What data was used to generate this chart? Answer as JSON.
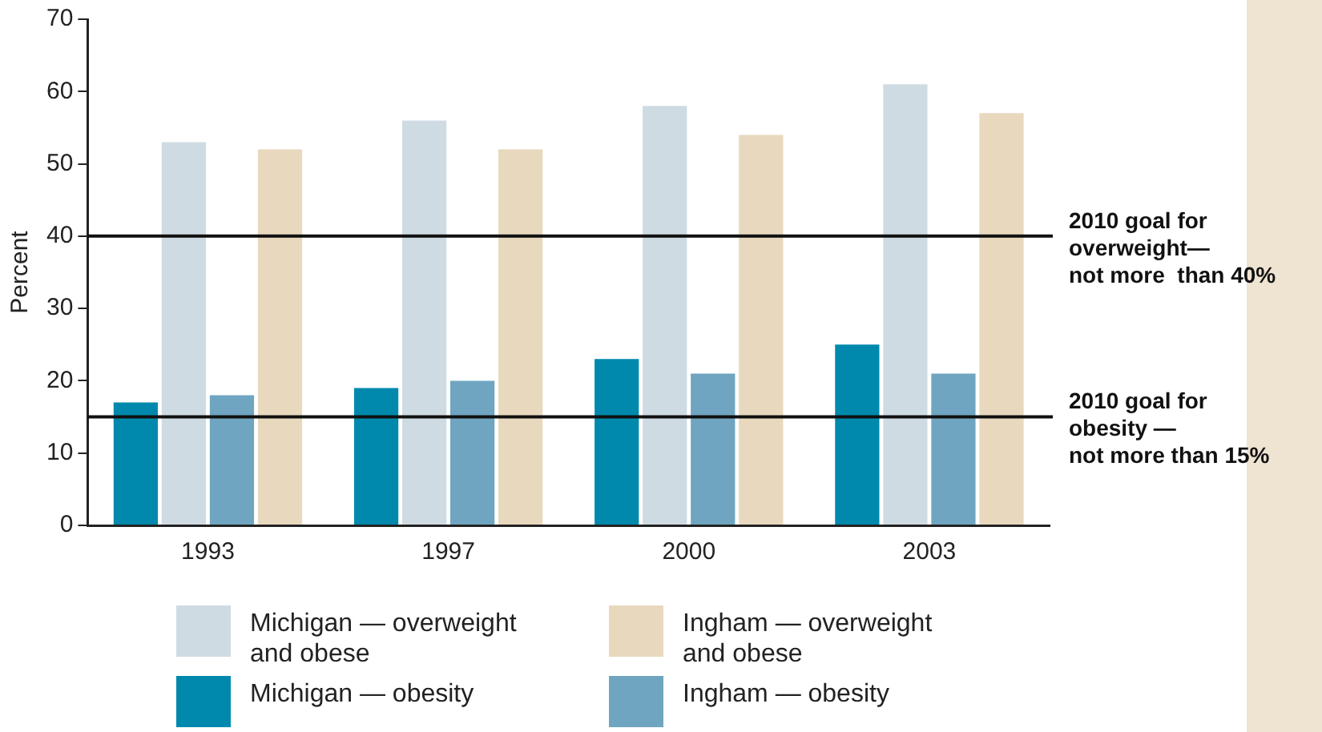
{
  "chart_data": {
    "type": "bar",
    "ylabel": "Percent",
    "categories": [
      "1993",
      "1997",
      "2000",
      "2003"
    ],
    "series": [
      {
        "name": "Michigan — obesity",
        "color": "#0089ad",
        "values": [
          17,
          19,
          23,
          25
        ]
      },
      {
        "name": "Michigan — overweight\nand obese",
        "color": "#cfdbe3",
        "values": [
          53,
          56,
          58,
          61
        ]
      },
      {
        "name": "Ingham — obesity",
        "color": "#6fa5c0",
        "values": [
          18,
          20,
          21,
          21
        ]
      },
      {
        "name": "Ingham — overweight\nand obese",
        "color": "#e8d8bd",
        "values": [
          52,
          52,
          54,
          57
        ]
      }
    ],
    "ylim": [
      0,
      70
    ],
    "yticks": [
      0,
      10,
      20,
      30,
      40,
      50,
      60,
      70
    ],
    "grid": false,
    "legend": "bottom",
    "ref_lines": [
      {
        "axis": "y",
        "value": 40,
        "label": "2010 goal for\noverweight—\nnot more  than 40%",
        "color": "#111111"
      },
      {
        "axis": "y",
        "value": 15,
        "label": "2010 goal for\nobesity —\nnot more than 15%",
        "color": "#111111"
      }
    ]
  }
}
